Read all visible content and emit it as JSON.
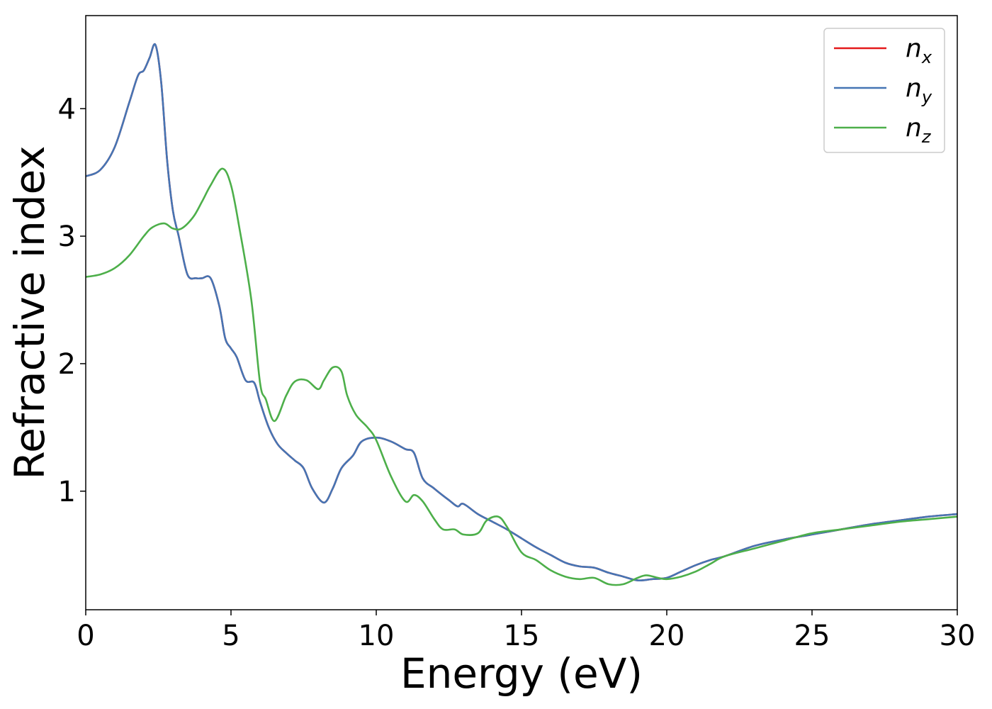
{
  "chart_data": {
    "type": "line",
    "title": "",
    "xlabel": "Energy (eV)",
    "ylabel": "Refractive index",
    "xlim": [
      0,
      30
    ],
    "ylim": [
      0.07,
      4.73
    ],
    "xticks": [
      0,
      5,
      10,
      15,
      20,
      25,
      30
    ],
    "yticks": [
      1,
      2,
      3,
      4
    ],
    "grid": false,
    "legend": "top-right",
    "series": [
      {
        "name": "n",
        "subscript": "x",
        "color": "#e41a1c",
        "x": [
          0,
          0.5,
          1.0,
          1.5,
          1.8,
          2.0,
          2.2,
          2.4,
          2.6,
          2.8,
          3.0,
          3.2,
          3.5,
          3.8,
          4.0,
          4.3,
          4.6,
          4.8,
          5.0,
          5.2,
          5.5,
          5.8,
          6.0,
          6.3,
          6.6,
          6.9,
          7.2,
          7.5,
          7.8,
          8.2,
          8.5,
          8.8,
          9.2,
          9.5,
          10.0,
          10.5,
          11.0,
          11.3,
          11.6,
          12.0,
          12.5,
          12.8,
          13.0,
          13.5,
          14.0,
          14.5,
          15.0,
          15.5,
          16.0,
          16.5,
          17.0,
          17.5,
          18.0,
          18.5,
          19.0,
          19.5,
          20.0,
          20.5,
          21.0,
          21.5,
          22.0,
          23.0,
          24.0,
          25.0,
          26.0,
          27.0,
          28.0,
          29.0,
          30.0
        ],
        "y": [
          3.47,
          3.52,
          3.7,
          4.05,
          4.26,
          4.3,
          4.4,
          4.5,
          4.2,
          3.6,
          3.2,
          3.0,
          2.7,
          2.67,
          2.67,
          2.67,
          2.45,
          2.2,
          2.12,
          2.05,
          1.87,
          1.85,
          1.7,
          1.5,
          1.37,
          1.3,
          1.24,
          1.18,
          1.02,
          0.91,
          1.02,
          1.18,
          1.28,
          1.39,
          1.42,
          1.39,
          1.33,
          1.3,
          1.1,
          1.02,
          0.93,
          0.88,
          0.9,
          0.82,
          0.76,
          0.7,
          0.63,
          0.56,
          0.5,
          0.44,
          0.41,
          0.4,
          0.36,
          0.33,
          0.3,
          0.31,
          0.32,
          0.37,
          0.42,
          0.46,
          0.49,
          0.57,
          0.62,
          0.66,
          0.7,
          0.74,
          0.77,
          0.8,
          0.82
        ]
      },
      {
        "name": "n",
        "subscript": "y",
        "color": "#4575b4",
        "x": [
          0,
          0.5,
          1.0,
          1.5,
          1.8,
          2.0,
          2.2,
          2.4,
          2.6,
          2.8,
          3.0,
          3.2,
          3.5,
          3.8,
          4.0,
          4.3,
          4.6,
          4.8,
          5.0,
          5.2,
          5.5,
          5.8,
          6.0,
          6.3,
          6.6,
          6.9,
          7.2,
          7.5,
          7.8,
          8.2,
          8.5,
          8.8,
          9.2,
          9.5,
          10.0,
          10.5,
          11.0,
          11.3,
          11.6,
          12.0,
          12.5,
          12.8,
          13.0,
          13.5,
          14.0,
          14.5,
          15.0,
          15.5,
          16.0,
          16.5,
          17.0,
          17.5,
          18.0,
          18.5,
          19.0,
          19.5,
          20.0,
          20.5,
          21.0,
          21.5,
          22.0,
          23.0,
          24.0,
          25.0,
          26.0,
          27.0,
          28.0,
          29.0,
          30.0
        ],
        "y": [
          3.47,
          3.52,
          3.7,
          4.05,
          4.26,
          4.3,
          4.4,
          4.5,
          4.2,
          3.6,
          3.2,
          3.0,
          2.7,
          2.67,
          2.67,
          2.67,
          2.45,
          2.2,
          2.12,
          2.05,
          1.87,
          1.85,
          1.7,
          1.5,
          1.37,
          1.3,
          1.24,
          1.18,
          1.02,
          0.91,
          1.02,
          1.18,
          1.28,
          1.39,
          1.42,
          1.39,
          1.33,
          1.3,
          1.1,
          1.02,
          0.93,
          0.88,
          0.9,
          0.82,
          0.76,
          0.7,
          0.63,
          0.56,
          0.5,
          0.44,
          0.41,
          0.4,
          0.36,
          0.33,
          0.3,
          0.31,
          0.32,
          0.37,
          0.42,
          0.46,
          0.49,
          0.57,
          0.62,
          0.66,
          0.7,
          0.74,
          0.77,
          0.8,
          0.82
        ]
      },
      {
        "name": "n",
        "subscript": "z",
        "color": "#4daf4a",
        "x": [
          0,
          0.5,
          1.0,
          1.5,
          2.0,
          2.3,
          2.7,
          3.0,
          3.3,
          3.7,
          4.0,
          4.3,
          4.7,
          5.0,
          5.3,
          5.7,
          6.0,
          6.2,
          6.5,
          6.9,
          7.2,
          7.6,
          8.0,
          8.2,
          8.5,
          8.8,
          9.0,
          9.3,
          9.7,
          10.0,
          10.5,
          11.0,
          11.3,
          11.6,
          12.0,
          12.3,
          12.7,
          13.0,
          13.5,
          13.8,
          14.2,
          14.5,
          15.0,
          15.5,
          16.0,
          16.5,
          17.0,
          17.5,
          18.0,
          18.5,
          19.0,
          19.3,
          19.7,
          20.0,
          20.5,
          21.0,
          21.5,
          22.0,
          23.0,
          24.0,
          25.0,
          26.0,
          27.0,
          28.0,
          29.0,
          30.0
        ],
        "y": [
          2.68,
          2.7,
          2.75,
          2.85,
          3.0,
          3.07,
          3.1,
          3.06,
          3.06,
          3.15,
          3.27,
          3.4,
          3.53,
          3.4,
          3.05,
          2.5,
          1.85,
          1.72,
          1.55,
          1.75,
          1.86,
          1.87,
          1.8,
          1.87,
          1.97,
          1.94,
          1.75,
          1.6,
          1.5,
          1.4,
          1.12,
          0.92,
          0.97,
          0.92,
          0.78,
          0.7,
          0.7,
          0.66,
          0.67,
          0.77,
          0.8,
          0.72,
          0.52,
          0.46,
          0.38,
          0.33,
          0.31,
          0.32,
          0.27,
          0.27,
          0.32,
          0.34,
          0.32,
          0.31,
          0.33,
          0.37,
          0.43,
          0.49,
          0.55,
          0.61,
          0.67,
          0.7,
          0.73,
          0.76,
          0.78,
          0.8
        ]
      }
    ]
  }
}
